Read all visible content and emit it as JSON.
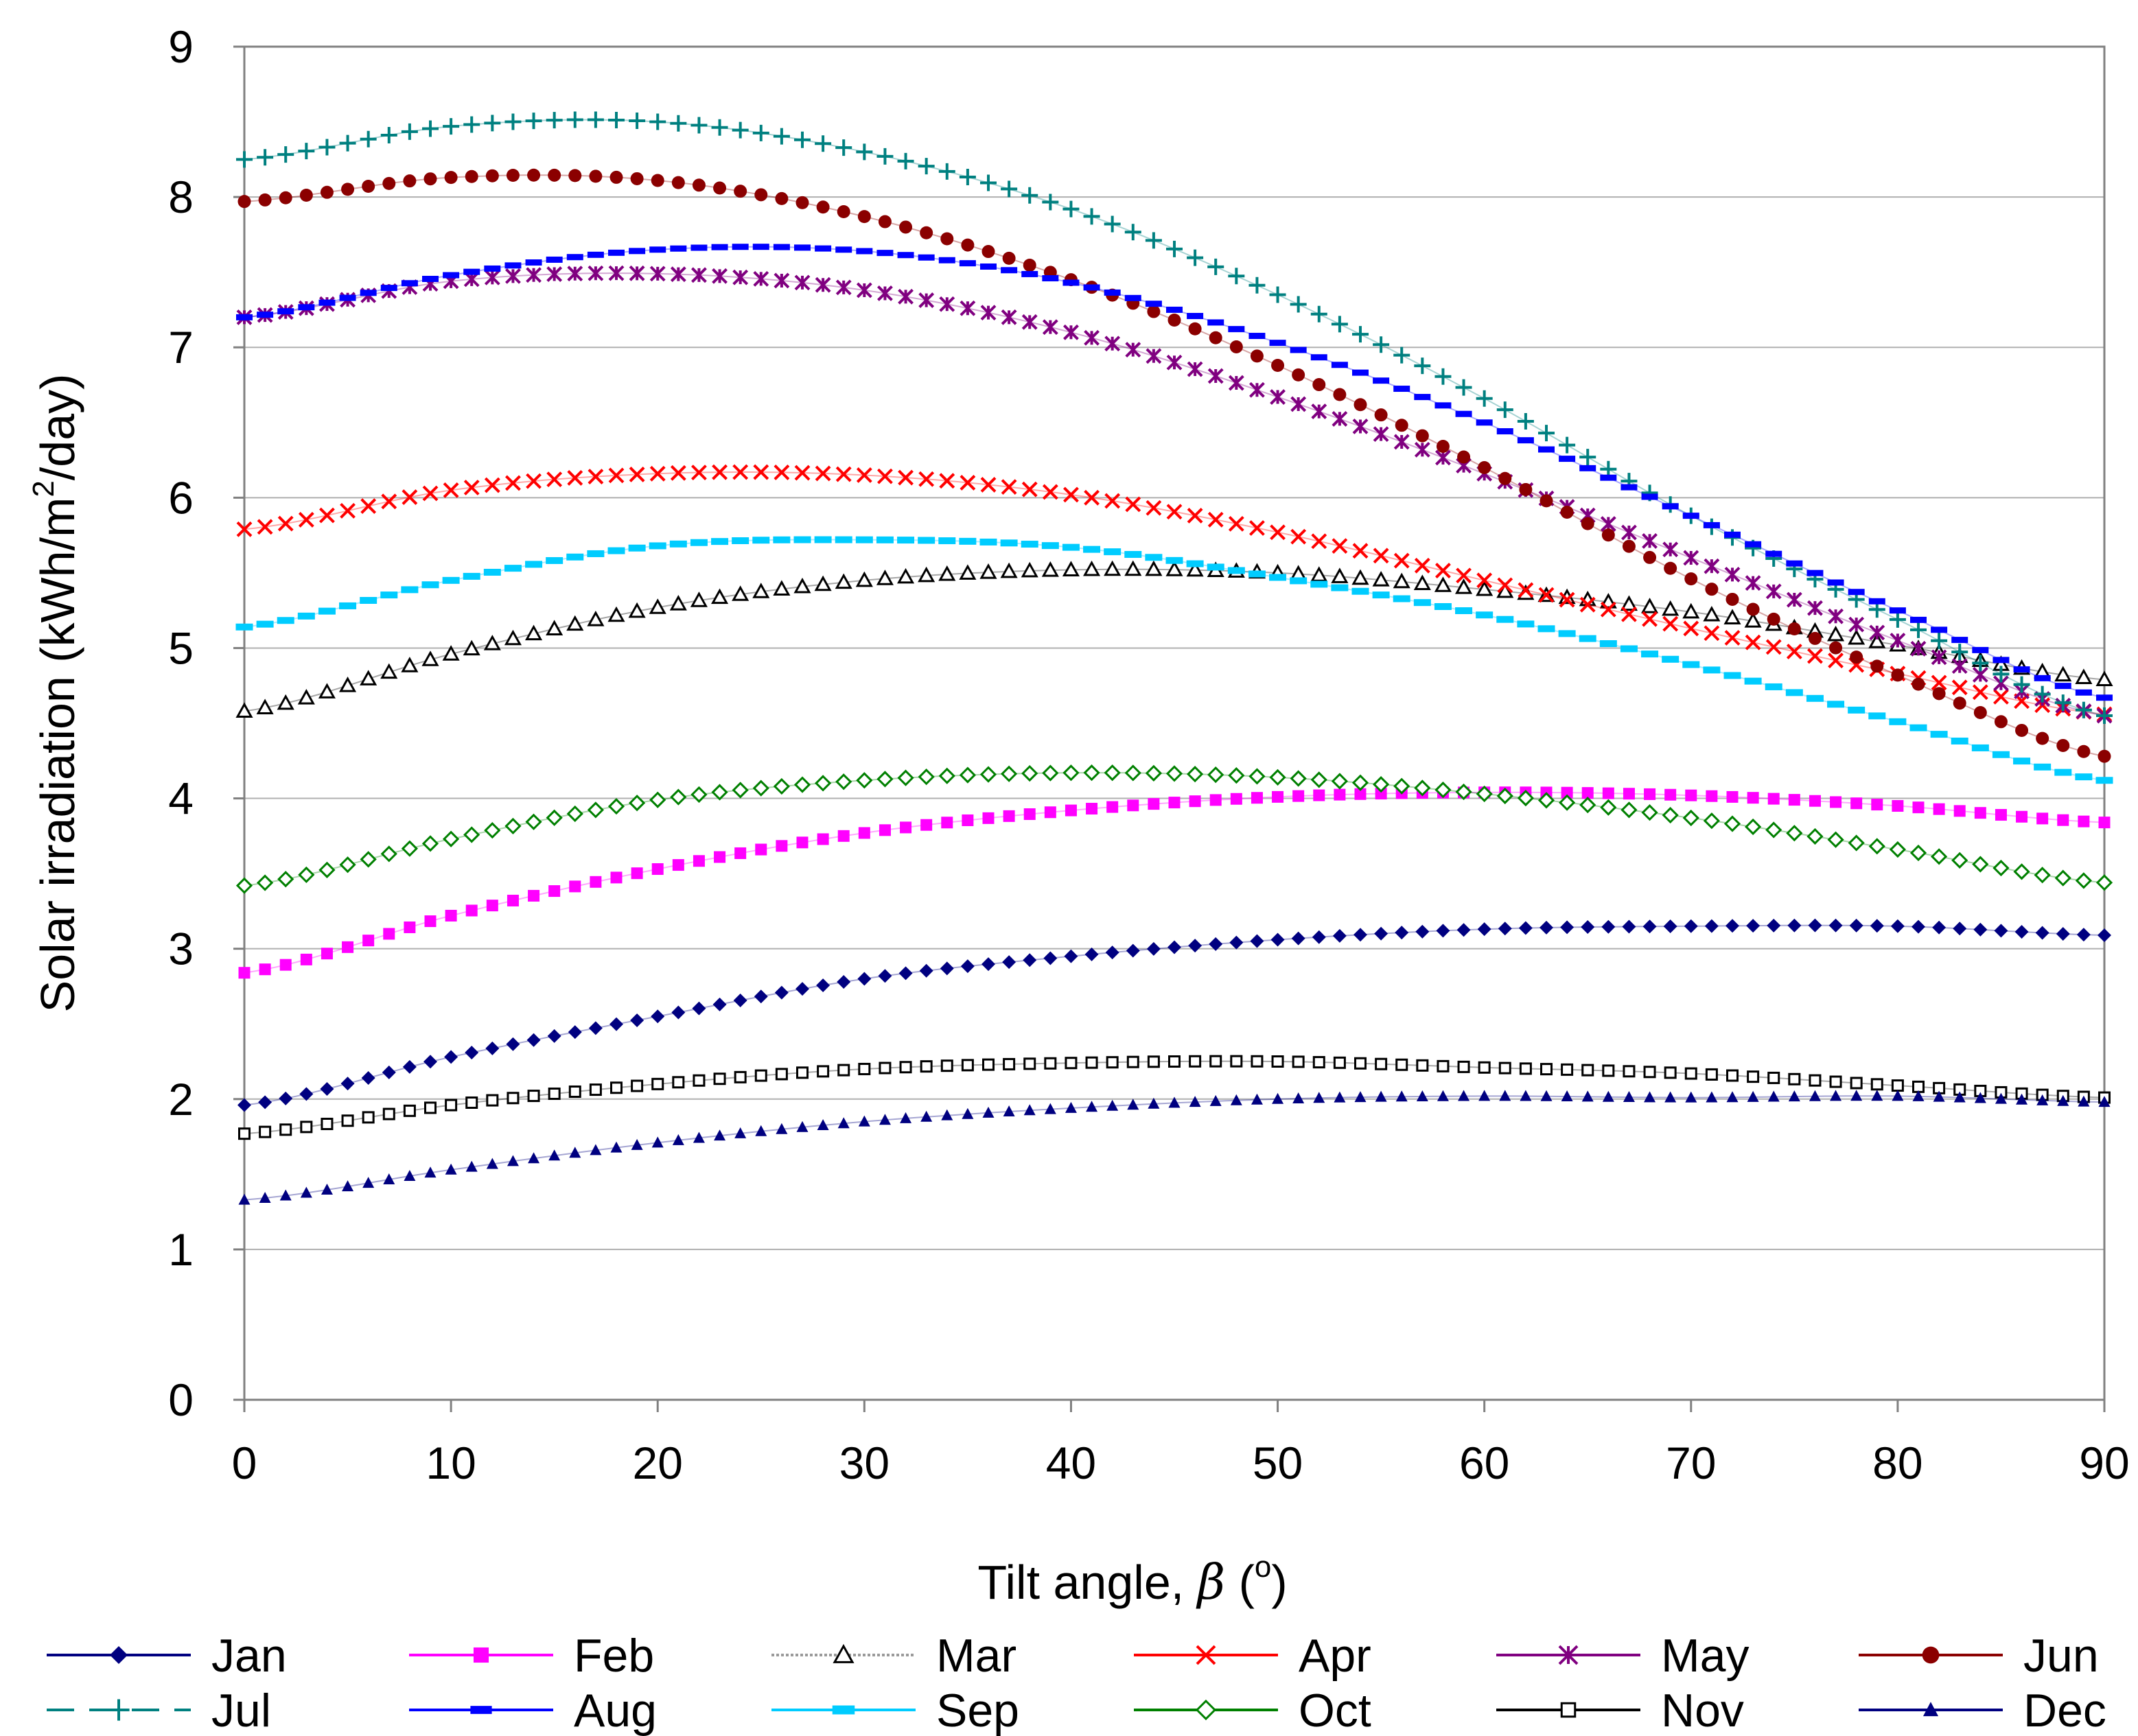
{
  "chart_data": {
    "type": "line",
    "title": "",
    "xlabel": "Tilt angle, β (°)",
    "xlabel_parts": {
      "main": "Tilt angle, ",
      "symbol": "β",
      "open": " (",
      "degree": "o",
      "close": ")"
    },
    "ylabel": "Solar irradiation (kWh/m²/day)",
    "ylabel_parts": {
      "pre": "Solar irradiation (kWh/m",
      "sup": "2",
      "post": "/day)"
    },
    "xlim": [
      0,
      90
    ],
    "ylim": [
      0,
      9
    ],
    "xticks": [
      0,
      10,
      20,
      30,
      40,
      50,
      60,
      70,
      80,
      90
    ],
    "yticks": [
      0,
      1,
      2,
      3,
      4,
      5,
      6,
      7,
      8,
      9
    ],
    "grid": "horizontal",
    "legend_position": "bottom",
    "x": [
      0,
      10,
      20,
      30,
      40,
      50,
      60,
      70,
      80,
      90
    ],
    "series": [
      {
        "name": "Jan",
        "color": "#000080",
        "marker": "diamond",
        "values": [
          1.96,
          2.28,
          2.55,
          2.8,
          2.95,
          3.06,
          3.13,
          3.15,
          3.15,
          3.09
        ]
      },
      {
        "name": "Feb",
        "color": "#FF00FF",
        "marker": "square",
        "values": [
          2.84,
          3.22,
          3.53,
          3.77,
          3.92,
          4.01,
          4.04,
          4.02,
          3.95,
          3.84
        ]
      },
      {
        "name": "Mar",
        "color": "#000000",
        "marker": "triangle-open",
        "values": [
          4.58,
          4.96,
          5.27,
          5.45,
          5.52,
          5.5,
          5.39,
          5.24,
          5.02,
          4.79
        ]
      },
      {
        "name": "Apr",
        "color": "#FF0000",
        "marker": "x",
        "values": [
          5.79,
          6.05,
          6.16,
          6.15,
          6.02,
          5.77,
          5.45,
          5.13,
          4.83,
          4.56
        ]
      },
      {
        "name": "May",
        "color": "#800080",
        "marker": "star",
        "values": [
          7.2,
          7.44,
          7.49,
          7.38,
          7.1,
          6.67,
          6.16,
          5.6,
          5.05,
          4.55
        ]
      },
      {
        "name": "Jun",
        "color": "#8B0000",
        "marker": "circle",
        "values": [
          7.97,
          8.13,
          8.11,
          7.87,
          7.45,
          6.88,
          6.2,
          5.46,
          4.82,
          4.28
        ]
      },
      {
        "name": "Jul",
        "color": "#008080",
        "marker": "plus",
        "dashed": true,
        "values": [
          8.25,
          8.47,
          8.5,
          8.3,
          7.92,
          7.35,
          6.66,
          5.88,
          5.19,
          4.55
        ]
      },
      {
        "name": "Aug",
        "color": "#0000FF",
        "marker": "dash",
        "values": [
          7.2,
          7.48,
          7.65,
          7.64,
          7.43,
          7.03,
          6.5,
          5.88,
          5.25,
          4.67
        ]
      },
      {
        "name": "Sep",
        "color": "#00CCFF",
        "marker": "bar",
        "values": [
          5.14,
          5.45,
          5.68,
          5.72,
          5.67,
          5.47,
          5.22,
          4.89,
          4.51,
          4.12
        ]
      },
      {
        "name": "Oct",
        "color": "#008000",
        "marker": "diamond-open",
        "values": [
          3.42,
          3.73,
          3.99,
          4.12,
          4.17,
          4.14,
          4.03,
          3.87,
          3.66,
          3.44
        ]
      },
      {
        "name": "Nov",
        "color": "#000000",
        "marker": "square-open",
        "values": [
          1.77,
          1.96,
          2.1,
          2.2,
          2.24,
          2.25,
          2.21,
          2.17,
          2.09,
          2.01
        ]
      },
      {
        "name": "Dec",
        "color": "#000080",
        "marker": "triangle",
        "values": [
          1.33,
          1.53,
          1.71,
          1.85,
          1.94,
          2.0,
          2.02,
          2.01,
          2.02,
          1.98
        ]
      }
    ]
  }
}
